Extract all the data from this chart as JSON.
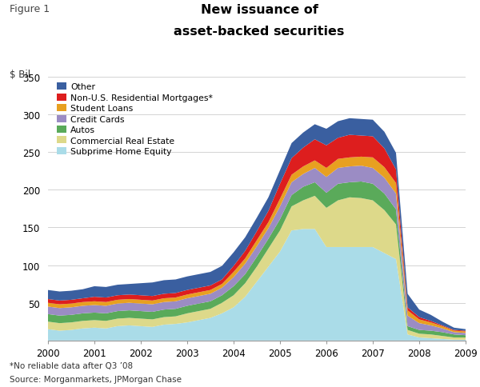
{
  "title_line1": "New issuance of",
  "title_line2": "asset-backed securities",
  "figure_label": "Figure 1",
  "ylabel": "$ Bil",
  "footnote1": "*No reliable data after Q3 ’08",
  "footnote2": "Source: Morganmarkets, JPMorgan Chase",
  "ylim": [
    0,
    350
  ],
  "yticks": [
    0,
    50,
    100,
    150,
    200,
    250,
    300,
    350
  ],
  "x_numeric": [
    2000.0,
    2000.25,
    2000.5,
    2000.75,
    2001.0,
    2001.25,
    2001.5,
    2001.75,
    2002.0,
    2002.25,
    2002.5,
    2002.75,
    2003.0,
    2003.25,
    2003.5,
    2003.75,
    2004.0,
    2004.25,
    2004.5,
    2004.75,
    2005.0,
    2005.25,
    2005.5,
    2005.75,
    2006.0,
    2006.25,
    2006.5,
    2006.75,
    2007.0,
    2007.25,
    2007.5,
    2007.75,
    2008.0,
    2008.25,
    2008.5,
    2008.75,
    2009.0
  ],
  "series_names": [
    "Subprime Home Equity",
    "Commercial Real Estate",
    "Autos",
    "Credit Cards",
    "Student Loans",
    "Non-U.S. Residential Mortgages*",
    "Other"
  ],
  "colors": [
    "#aadce8",
    "#ddd98a",
    "#5aaa5a",
    "#9b8cc4",
    "#e8a020",
    "#dd1e1e",
    "#3a5fa0"
  ],
  "data": {
    "Subprime Home Equity": [
      15,
      13,
      14,
      16,
      17,
      16,
      19,
      20,
      19,
      18,
      21,
      22,
      24,
      27,
      30,
      36,
      44,
      58,
      78,
      98,
      118,
      146,
      148,
      148,
      124,
      124,
      124,
      124,
      124,
      116,
      108,
      8,
      4,
      3,
      2,
      1,
      1
    ],
    "Commercial Real Estate": [
      10,
      10,
      10,
      10,
      10,
      10,
      10,
      10,
      10,
      10,
      10,
      10,
      12,
      12,
      12,
      14,
      16,
      18,
      20,
      24,
      28,
      32,
      38,
      44,
      52,
      62,
      66,
      65,
      62,
      57,
      46,
      6,
      5,
      5,
      4,
      3,
      3
    ],
    "Autos": [
      10,
      10,
      10,
      10,
      10,
      10,
      10,
      10,
      10,
      10,
      10,
      10,
      10,
      10,
      10,
      10,
      12,
      12,
      13,
      13,
      15,
      15,
      18,
      18,
      20,
      22,
      20,
      22,
      22,
      22,
      20,
      5,
      5,
      5,
      5,
      4,
      3
    ],
    "Credit Cards": [
      10,
      10,
      10,
      10,
      10,
      10,
      10,
      10,
      10,
      10,
      10,
      10,
      10,
      10,
      10,
      10,
      12,
      14,
      14,
      14,
      17,
      17,
      17,
      19,
      21,
      21,
      21,
      21,
      21,
      21,
      21,
      14,
      9,
      7,
      5,
      3,
      3
    ],
    "Student Loans": [
      5,
      5,
      5,
      5,
      5,
      5,
      5,
      5,
      5,
      5,
      5,
      5,
      5,
      5,
      5,
      5,
      7,
      7,
      8,
      8,
      10,
      10,
      10,
      10,
      12,
      12,
      12,
      12,
      14,
      14,
      14,
      7,
      5,
      4,
      3,
      2,
      2
    ],
    "Non-U.S. Residential Mortgages*": [
      5,
      5,
      5,
      5,
      6,
      6,
      6,
      6,
      6,
      6,
      6,
      6,
      6,
      6,
      6,
      6,
      8,
      10,
      12,
      15,
      20,
      22,
      25,
      28,
      30,
      28,
      30,
      28,
      28,
      25,
      18,
      4,
      3,
      2,
      1,
      1,
      1
    ],
    "Other": [
      12,
      12,
      12,
      12,
      14,
      14,
      14,
      14,
      16,
      18,
      18,
      18,
      18,
      18,
      18,
      18,
      18,
      18,
      18,
      18,
      18,
      20,
      20,
      20,
      22,
      22,
      22,
      22,
      22,
      22,
      22,
      18,
      10,
      8,
      5,
      3,
      2
    ]
  }
}
